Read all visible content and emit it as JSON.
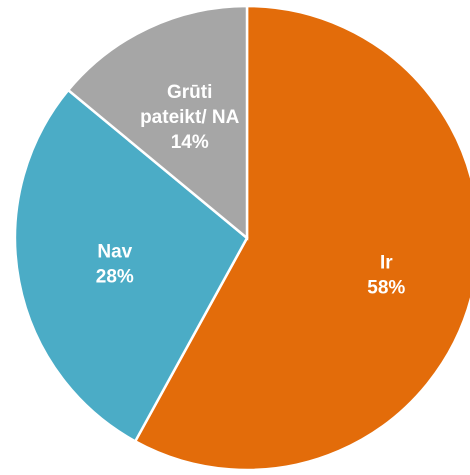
{
  "chart_data": {
    "type": "pie",
    "categories": [
      "Ir",
      "Nav",
      "Grūti pateikt/ NA"
    ],
    "values": [
      58,
      28,
      14
    ],
    "colors": [
      "#E36C0A",
      "#4BACC6",
      "#A6A6A6"
    ],
    "slices": [
      {
        "name": "Ir",
        "value": 58,
        "color": "#E36C0A",
        "label_lines": [
          "Ir",
          "58%"
        ]
      },
      {
        "name": "Nav",
        "value": 28,
        "color": "#4BACC6",
        "label_lines": [
          "Nav",
          "28%"
        ]
      },
      {
        "name": "Grūti pateikt/ NA",
        "value": 14,
        "color": "#A6A6A6",
        "label_lines": [
          "Grūti",
          "pateikt/ NA",
          "14%"
        ]
      }
    ],
    "start_angle": "12 o'clock",
    "direction": "clockwise",
    "title": "",
    "legend": "none"
  }
}
